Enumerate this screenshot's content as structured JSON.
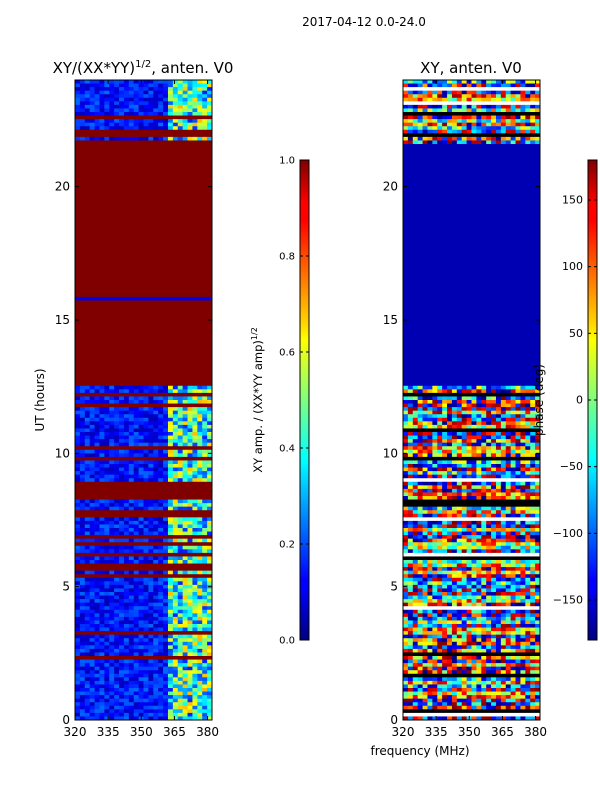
{
  "suptitle": "2017-04-12 0.0-24.0",
  "shared_xlabel": "frequency (MHz)",
  "chart_data": [
    {
      "type": "heatmap",
      "title_prefix": "XY/(XX*YY)",
      "title_sup": "1/2",
      "title_suffix": ", anten. V0",
      "ylabel": "UT (hours)",
      "xlim": [
        320,
        382
      ],
      "ylim": [
        0,
        24
      ],
      "xticks": [
        320,
        335,
        350,
        365,
        380
      ],
      "yticks": [
        0,
        5,
        10,
        15,
        20
      ],
      "colorbar": {
        "label_prefix": "XY amp. / (XX*YY amp)",
        "label_sup": "1/2",
        "range": [
          0.0,
          1.0
        ],
        "ticks": [
          "0.0",
          "0.2",
          "0.4",
          "0.6",
          "0.8",
          "1.0"
        ],
        "colormap": "jet"
      },
      "features": [
        {
          "note": "saturated",
          "t_start": 12.5,
          "t_end": 21.6,
          "value": 1.0
        },
        {
          "note": "low-baseline",
          "t_start": 0,
          "t_end": 12.5,
          "value": 0.08
        },
        {
          "note": "low-baseline",
          "t_start": 21.6,
          "t_end": 24,
          "value": 0.08
        },
        {
          "note": "high-band",
          "f_start": 360,
          "f_end": 382,
          "value": 0.45
        }
      ]
    },
    {
      "type": "heatmap",
      "title": "XY, anten. V0",
      "xlim": [
        320,
        382
      ],
      "ylim": [
        0,
        24
      ],
      "xticks": [
        320,
        335,
        350,
        365,
        380
      ],
      "yticks": [
        0,
        5,
        10,
        15,
        20
      ],
      "colorbar": {
        "label": "phase (deg)",
        "range": [
          -180,
          180
        ],
        "ticks": [
          "−150",
          "−100",
          "−50",
          "0",
          "50",
          "100",
          "150"
        ],
        "colormap": "jet"
      },
      "features": [
        {
          "note": "flat",
          "t_start": 12.5,
          "t_end": 21.6,
          "value": -180
        },
        {
          "note": "random-phase",
          "t_start": 0,
          "t_end": 12.5
        },
        {
          "note": "random-phase",
          "t_start": 21.6,
          "t_end": 24
        }
      ]
    }
  ]
}
